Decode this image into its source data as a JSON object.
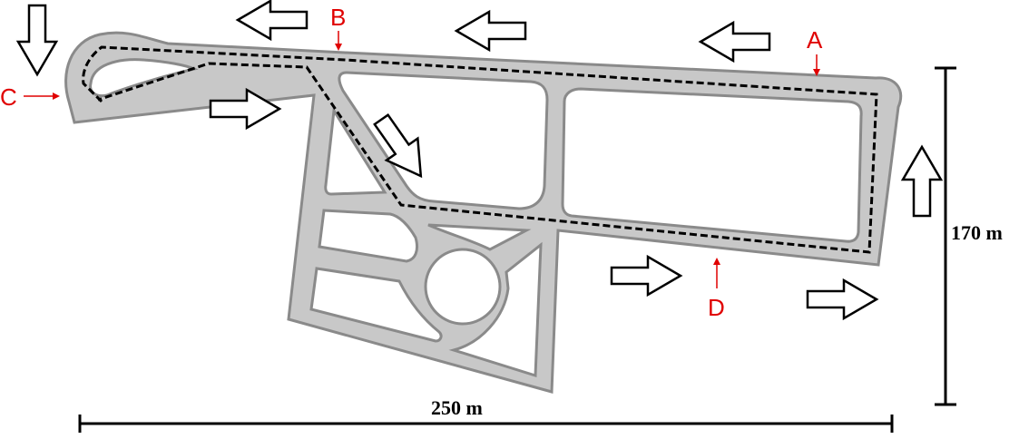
{
  "points": {
    "a": "A",
    "b": "B",
    "c": "C",
    "d": "D"
  },
  "dimensions": {
    "width_label": "250 m",
    "height_label": "170 m"
  },
  "colors": {
    "track": "#c8c8c8",
    "track_edge": "#888888",
    "route": "#000000",
    "marker": "#e00000"
  },
  "icons": {
    "direction": "hollow-arrow-icon"
  }
}
